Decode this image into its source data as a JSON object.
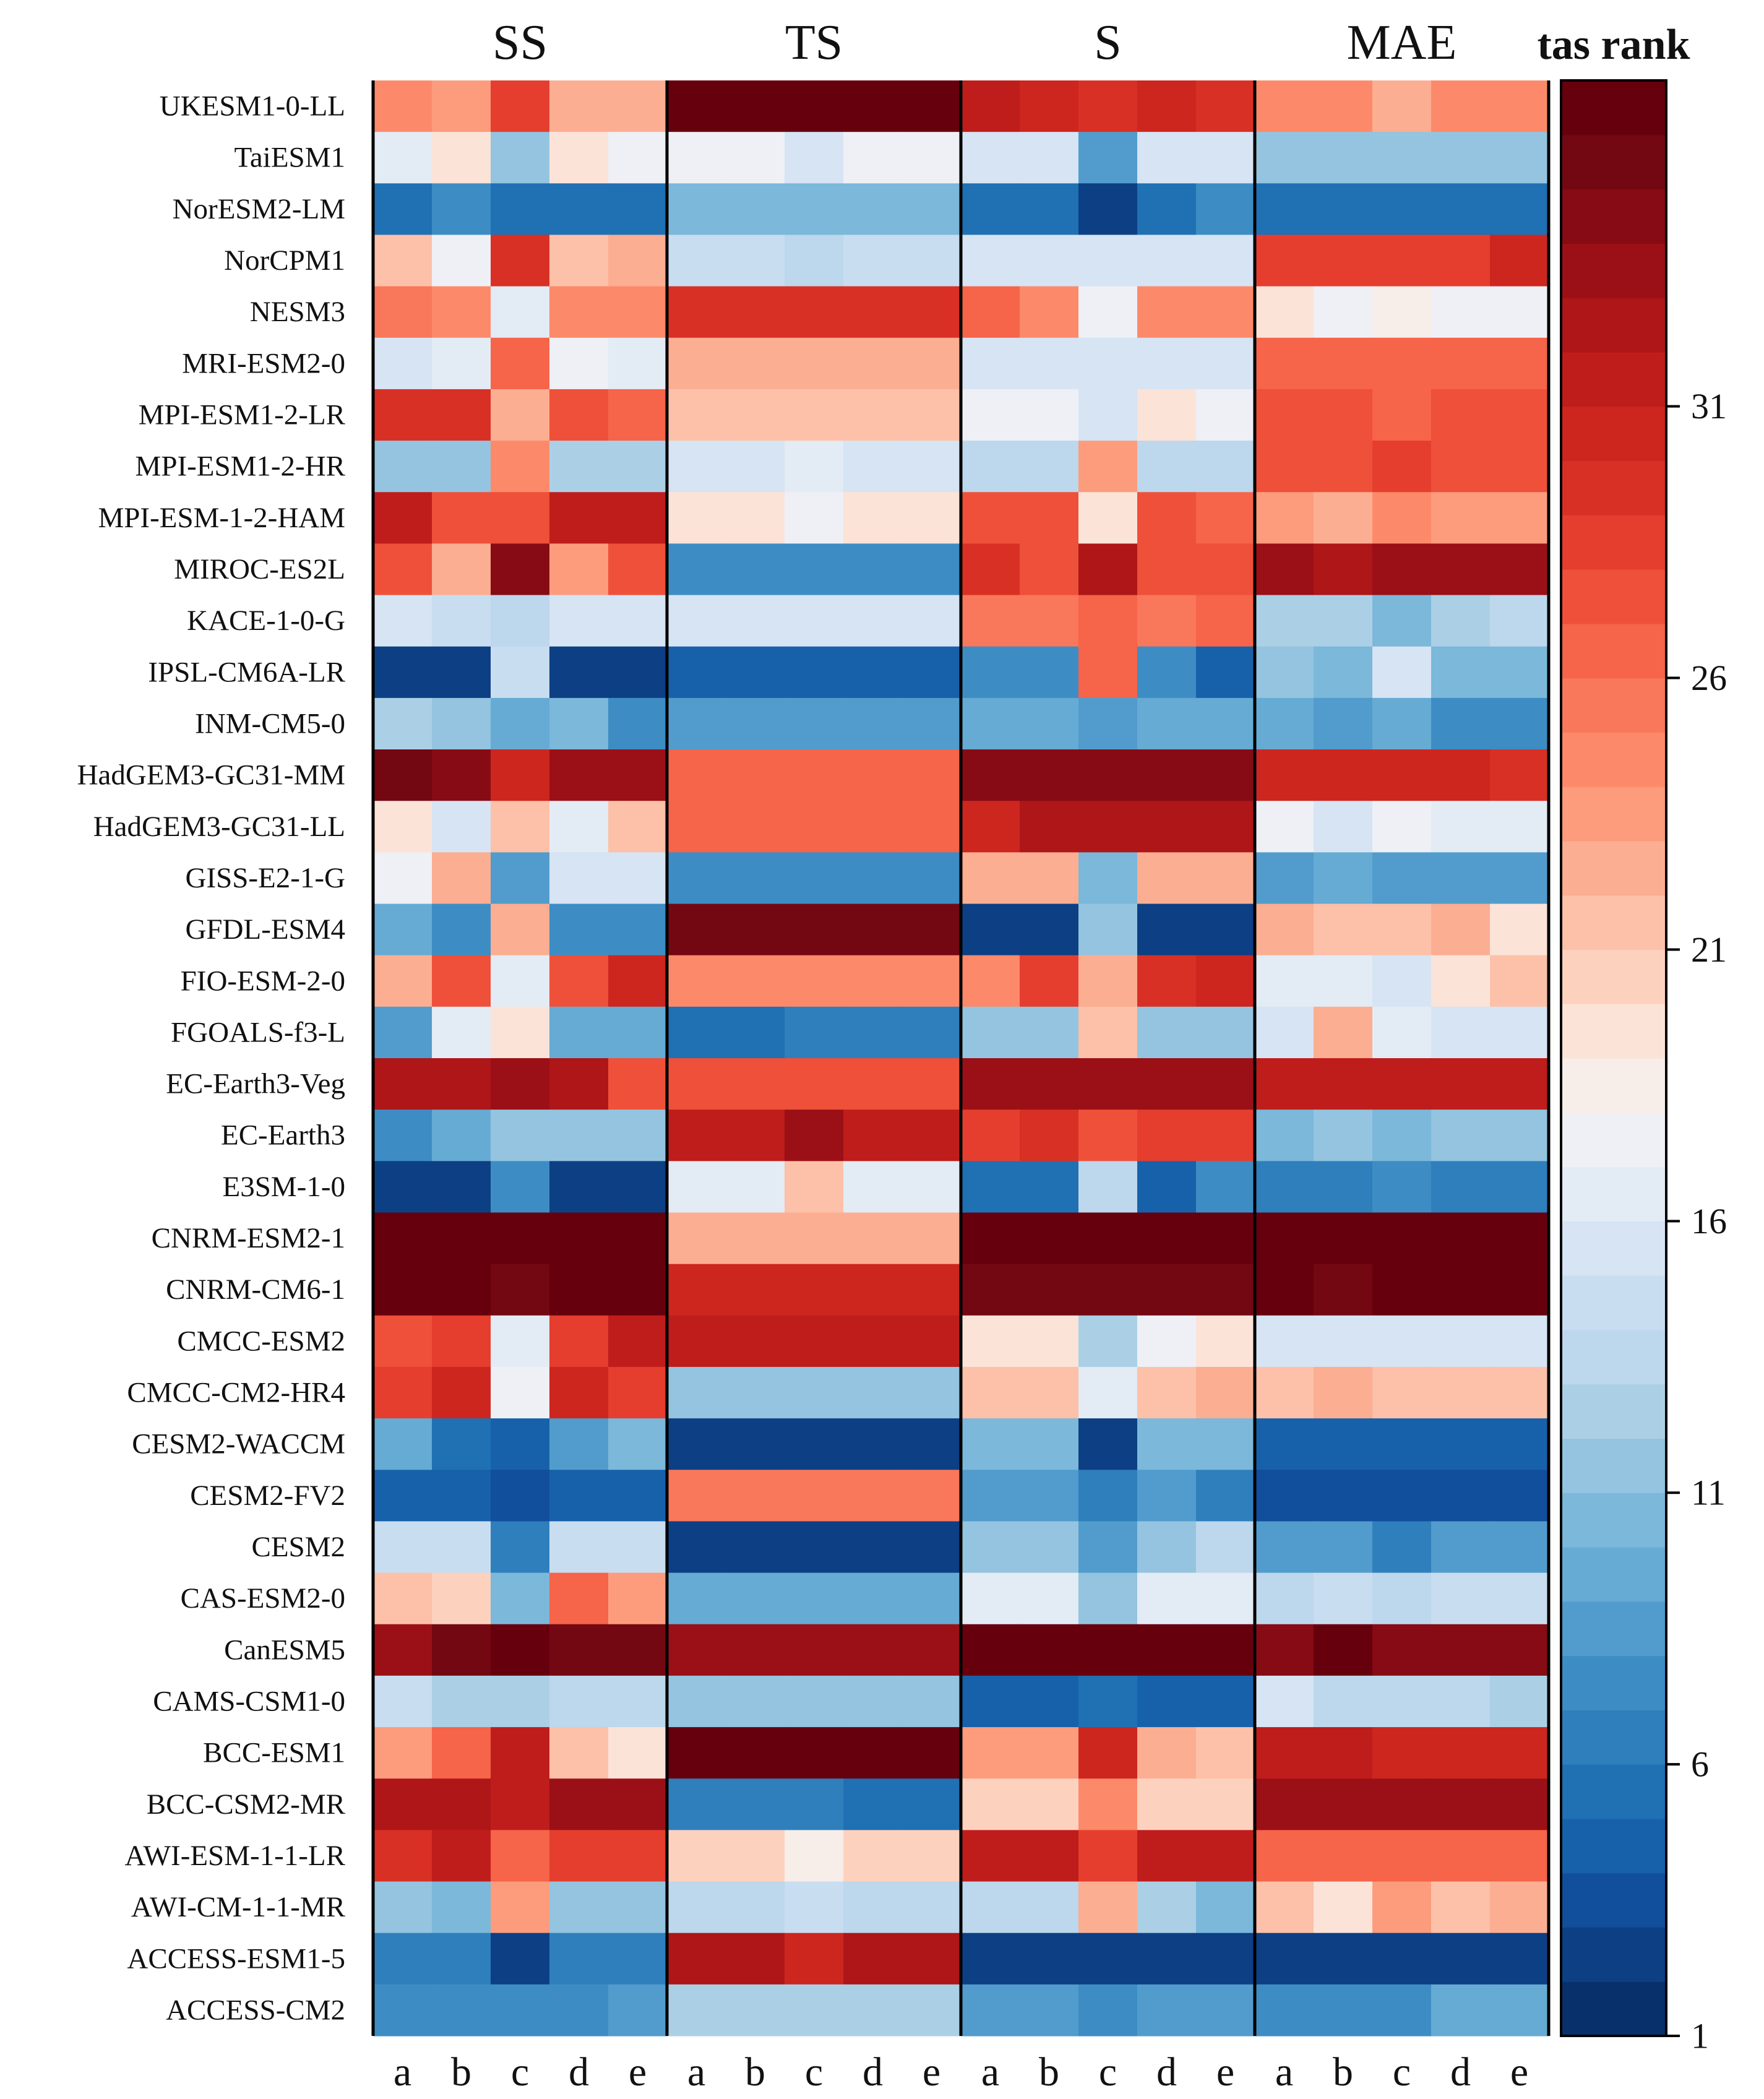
{
  "chart_data": {
    "type": "heatmap",
    "colorbar": {
      "title": "tas rank",
      "min": 1,
      "max": 37,
      "ticks": [
        1,
        6,
        11,
        16,
        21,
        26,
        31
      ],
      "colorscale": "RdBu_r",
      "colors": [
        "#08306b",
        "#0d3f84",
        "#114e9b",
        "#1761aa",
        "#2070b4",
        "#2f7fbc",
        "#3d8dc4",
        "#519ccc",
        "#66abd4",
        "#7bb8da",
        "#94c4df",
        "#abd0e6",
        "#bdd7ec",
        "#c9ddf0",
        "#d6e4f4",
        "#e3ebf5",
        "#eef0f5",
        "#f7ede9",
        "#fbe3d8",
        "#fcd2bf",
        "#fcc1a8",
        "#fcae92",
        "#fc9c7d",
        "#fc8a6a",
        "#f9775a",
        "#f6644a",
        "#ef5039",
        "#e53e2f",
        "#d93025",
        "#cd261f",
        "#bf1d1b",
        "#ae1618",
        "#9b1016",
        "#870b14",
        "#730812",
        "#67000d"
      ]
    },
    "groups": [
      "SS",
      "TS",
      "S",
      "MAE"
    ],
    "columns": [
      "a",
      "b",
      "c",
      "d",
      "e"
    ],
    "rows": [
      "UKESM1-0-LL",
      "TaiESM1",
      "NorESM2-LM",
      "NorCPM1",
      "NESM3",
      "MRI-ESM2-0",
      "MPI-ESM1-2-LR",
      "MPI-ESM1-2-HR",
      "MPI-ESM-1-2-HAM",
      "MIROC-ES2L",
      "KACE-1-0-G",
      "IPSL-CM6A-LR",
      "INM-CM5-0",
      "HadGEM3-GC31-MM",
      "HadGEM3-GC31-LL",
      "GISS-E2-1-G",
      "GFDL-ESM4",
      "FIO-ESM-2-0",
      "FGOALS-f3-L",
      "EC-Earth3-Veg",
      "EC-Earth3",
      "E3SM-1-0",
      "CNRM-ESM2-1",
      "CNRM-CM6-1",
      "CMCC-ESM2",
      "CMCC-CM2-HR4",
      "CESM2-WACCM",
      "CESM2-FV2",
      "CESM2",
      "CAS-ESM2-0",
      "CanESM5",
      "CAMS-CSM1-0",
      "BCC-ESM1",
      "BCC-CSM2-MR",
      "AWI-ESM-1-1-LR",
      "AWI-CM-1-1-MR",
      "ACCESS-ESM1-5",
      "ACCESS-CM2"
    ],
    "values": [
      [
        24,
        23,
        28,
        22,
        22,
        37,
        37,
        37,
        37,
        37,
        31,
        30,
        29,
        30,
        29,
        24,
        24,
        22,
        24,
        24
      ],
      [
        16,
        19,
        11,
        19,
        17,
        17,
        17,
        15,
        17,
        17,
        15,
        15,
        8,
        15,
        15,
        11,
        11,
        11,
        11,
        11
      ],
      [
        5,
        7,
        5,
        5,
        5,
        10,
        10,
        10,
        10,
        10,
        5,
        5,
        2,
        5,
        7,
        5,
        5,
        5,
        5,
        5
      ],
      [
        21,
        17,
        29,
        21,
        22,
        14,
        14,
        13,
        14,
        14,
        15,
        15,
        15,
        15,
        15,
        28,
        28,
        28,
        28,
        30
      ],
      [
        25,
        24,
        16,
        24,
        24,
        29,
        29,
        29,
        29,
        29,
        26,
        24,
        17,
        24,
        24,
        19,
        17,
        18,
        17,
        17
      ],
      [
        15,
        16,
        26,
        17,
        16,
        22,
        22,
        22,
        22,
        22,
        15,
        15,
        15,
        15,
        15,
        26,
        26,
        26,
        26,
        26
      ],
      [
        29,
        29,
        22,
        27,
        26,
        21,
        21,
        21,
        21,
        21,
        17,
        17,
        15,
        19,
        17,
        27,
        27,
        26,
        27,
        27
      ],
      [
        11,
        11,
        24,
        12,
        12,
        15,
        15,
        16,
        15,
        15,
        13,
        13,
        23,
        13,
        13,
        27,
        27,
        28,
        27,
        27
      ],
      [
        31,
        27,
        27,
        31,
        31,
        19,
        19,
        17,
        19,
        19,
        27,
        27,
        19,
        27,
        26,
        23,
        22,
        24,
        23,
        23
      ],
      [
        27,
        22,
        34,
        23,
        27,
        7,
        7,
        7,
        7,
        7,
        29,
        27,
        32,
        27,
        27,
        33,
        32,
        33,
        33,
        33
      ],
      [
        15,
        14,
        13,
        15,
        15,
        15,
        15,
        15,
        15,
        15,
        25,
        25,
        26,
        25,
        26,
        12,
        12,
        10,
        12,
        13
      ],
      [
        2,
        2,
        14,
        2,
        2,
        4,
        4,
        4,
        4,
        4,
        7,
        7,
        26,
        7,
        4,
        11,
        10,
        15,
        10,
        10
      ],
      [
        12,
        11,
        9,
        10,
        7,
        8,
        8,
        8,
        8,
        8,
        9,
        9,
        8,
        9,
        9,
        9,
        8,
        9,
        7,
        7
      ],
      [
        35,
        34,
        30,
        33,
        33,
        26,
        26,
        26,
        26,
        26,
        34,
        34,
        34,
        34,
        34,
        30,
        30,
        30,
        30,
        29
      ],
      [
        19,
        15,
        21,
        16,
        21,
        26,
        26,
        26,
        26,
        26,
        30,
        32,
        32,
        32,
        32,
        17,
        15,
        17,
        16,
        16
      ],
      [
        17,
        22,
        8,
        15,
        15,
        7,
        7,
        7,
        7,
        7,
        22,
        22,
        10,
        22,
        22,
        8,
        9,
        8,
        8,
        8
      ],
      [
        9,
        7,
        22,
        7,
        7,
        35,
        35,
        35,
        35,
        35,
        2,
        2,
        11,
        2,
        2,
        22,
        21,
        21,
        22,
        19
      ],
      [
        22,
        27,
        16,
        27,
        30,
        24,
        24,
        24,
        24,
        24,
        24,
        28,
        22,
        29,
        30,
        16,
        16,
        15,
        19,
        21
      ],
      [
        8,
        16,
        19,
        9,
        9,
        5,
        5,
        6,
        6,
        6,
        11,
        11,
        21,
        11,
        11,
        15,
        22,
        16,
        15,
        15
      ],
      [
        32,
        32,
        33,
        32,
        27,
        27,
        27,
        27,
        27,
        27,
        33,
        33,
        33,
        33,
        33,
        31,
        31,
        31,
        31,
        31
      ],
      [
        7,
        9,
        11,
        11,
        11,
        31,
        31,
        33,
        31,
        31,
        28,
        29,
        27,
        28,
        28,
        10,
        11,
        10,
        11,
        11
      ],
      [
        2,
        2,
        7,
        2,
        2,
        16,
        16,
        21,
        16,
        16,
        5,
        5,
        13,
        4,
        7,
        6,
        6,
        7,
        6,
        6
      ],
      [
        37,
        37,
        37,
        37,
        37,
        22,
        22,
        22,
        22,
        22,
        37,
        37,
        37,
        37,
        37,
        37,
        37,
        37,
        37,
        37
      ],
      [
        36,
        36,
        35,
        36,
        36,
        30,
        30,
        30,
        30,
        30,
        35,
        35,
        35,
        35,
        35,
        36,
        35,
        37,
        37,
        37
      ],
      [
        27,
        28,
        16,
        28,
        31,
        31,
        31,
        31,
        31,
        31,
        19,
        19,
        12,
        17,
        19,
        15,
        15,
        15,
        15,
        15
      ],
      [
        28,
        30,
        17,
        30,
        28,
        11,
        11,
        11,
        11,
        11,
        21,
        21,
        16,
        21,
        22,
        21,
        22,
        21,
        21,
        21
      ],
      [
        9,
        5,
        4,
        8,
        10,
        2,
        2,
        2,
        2,
        2,
        10,
        10,
        2,
        10,
        10,
        4,
        4,
        4,
        4,
        4
      ],
      [
        4,
        4,
        3,
        4,
        4,
        25,
        25,
        25,
        25,
        25,
        8,
        8,
        6,
        8,
        6,
        3,
        3,
        3,
        3,
        3
      ],
      [
        14,
        14,
        6,
        14,
        14,
        2,
        2,
        2,
        2,
        2,
        11,
        11,
        8,
        11,
        13,
        8,
        8,
        6,
        8,
        8
      ],
      [
        21,
        20,
        10,
        26,
        23,
        9,
        9,
        9,
        9,
        9,
        16,
        16,
        11,
        16,
        16,
        13,
        14,
        13,
        14,
        14
      ],
      [
        33,
        35,
        36,
        35,
        35,
        33,
        33,
        33,
        33,
        33,
        36,
        36,
        36,
        36,
        36,
        34,
        36,
        34,
        34,
        34
      ],
      [
        14,
        12,
        12,
        13,
        13,
        11,
        11,
        11,
        11,
        11,
        4,
        4,
        5,
        4,
        4,
        15,
        13,
        13,
        13,
        12
      ],
      [
        23,
        26,
        31,
        21,
        19,
        37,
        37,
        37,
        37,
        37,
        23,
        23,
        30,
        22,
        21,
        31,
        31,
        30,
        30,
        30
      ],
      [
        32,
        32,
        31,
        33,
        33,
        6,
        6,
        6,
        5,
        5,
        20,
        20,
        24,
        20,
        20,
        33,
        33,
        33,
        33,
        33
      ],
      [
        29,
        31,
        26,
        28,
        28,
        20,
        20,
        18,
        20,
        20,
        31,
        31,
        28,
        31,
        31,
        26,
        26,
        26,
        26,
        26
      ],
      [
        11,
        10,
        23,
        11,
        11,
        13,
        13,
        14,
        13,
        13,
        13,
        13,
        22,
        12,
        10,
        21,
        19,
        23,
        21,
        22
      ],
      [
        6,
        6,
        2,
        6,
        6,
        32,
        32,
        30,
        32,
        32,
        2,
        2,
        2,
        2,
        2,
        2,
        2,
        2,
        2,
        2
      ],
      [
        7,
        7,
        7,
        7,
        8,
        12,
        12,
        12,
        12,
        12,
        8,
        8,
        7,
        8,
        8,
        7,
        7,
        7,
        9,
        9
      ]
    ]
  }
}
